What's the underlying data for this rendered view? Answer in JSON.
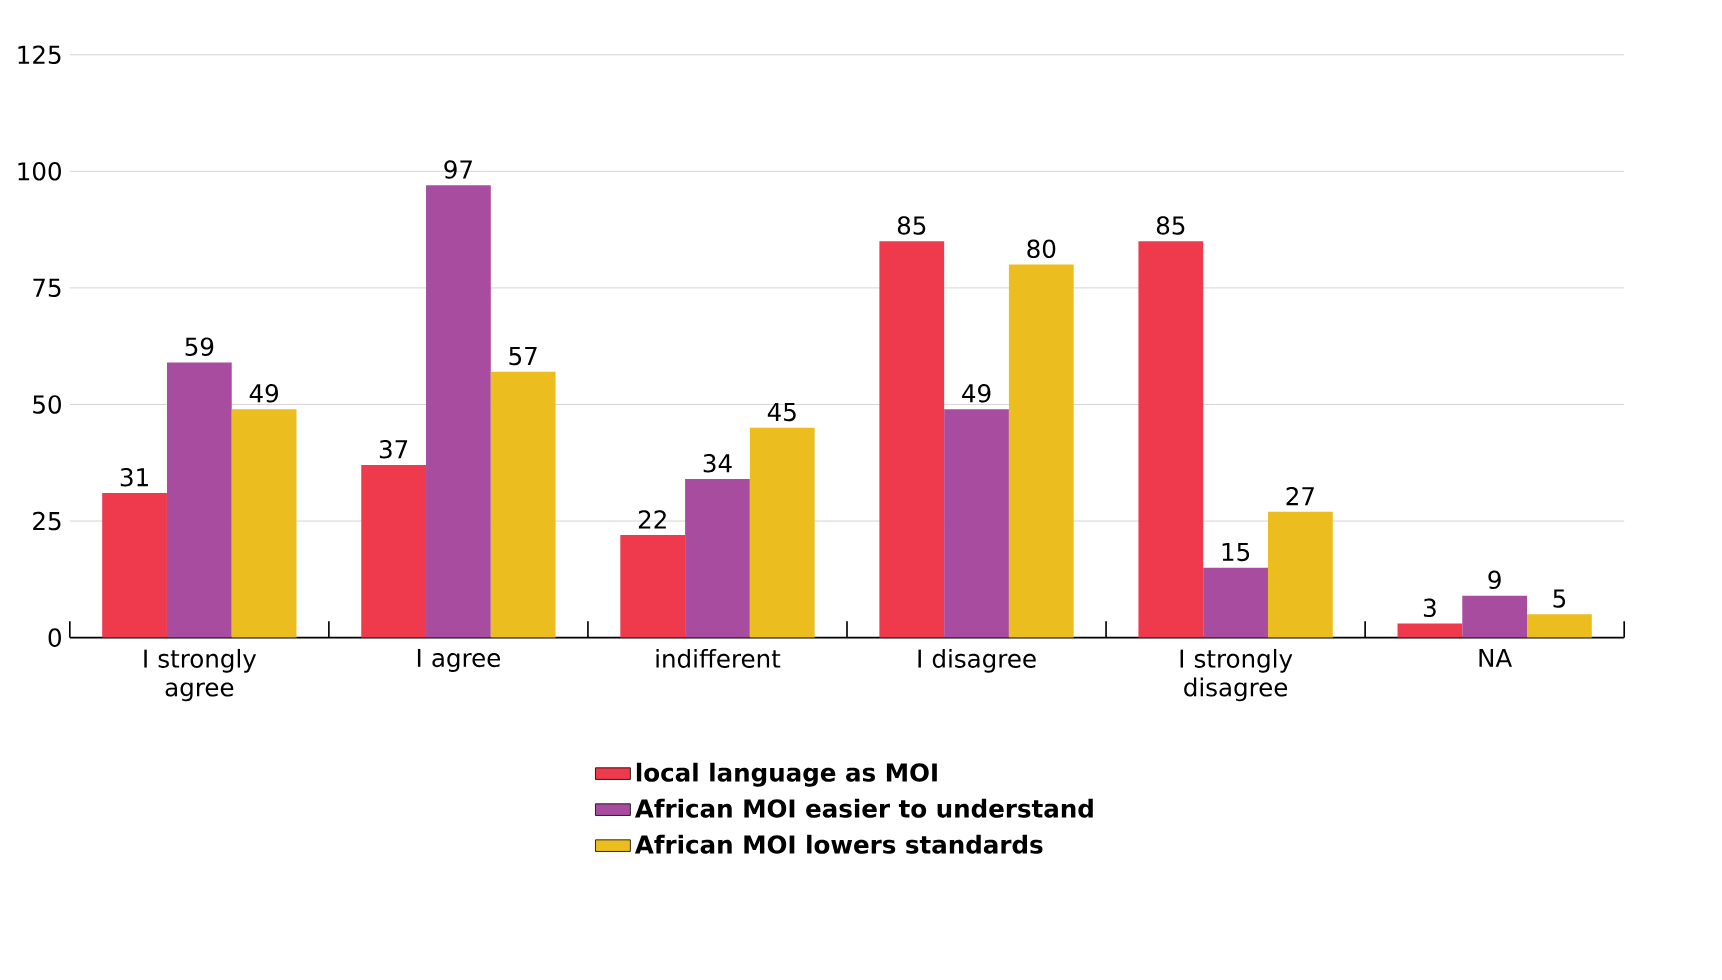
{
  "chart_data": {
    "type": "bar",
    "categories": [
      "I strongly agree",
      "I agree",
      "indifferent",
      "I disagree",
      "I strongly disagree",
      "NA"
    ],
    "series": [
      {
        "name": "local language as MOI",
        "color": "#ee3a4c",
        "values": [
          31,
          37,
          22,
          85,
          85,
          3
        ]
      },
      {
        "name": "African MOI easier to understand",
        "color": "#a84c9f",
        "values": [
          59,
          97,
          34,
          49,
          15,
          9
        ]
      },
      {
        "name": "African MOI lowers standards",
        "color": "#ebbd1e",
        "values": [
          49,
          57,
          45,
          80,
          27,
          5
        ]
      }
    ],
    "ylim": [
      0,
      125
    ],
    "yticks": [
      0,
      25,
      50,
      75,
      100,
      125
    ],
    "grid": "y",
    "legend": "bottom",
    "data_labels": true
  }
}
